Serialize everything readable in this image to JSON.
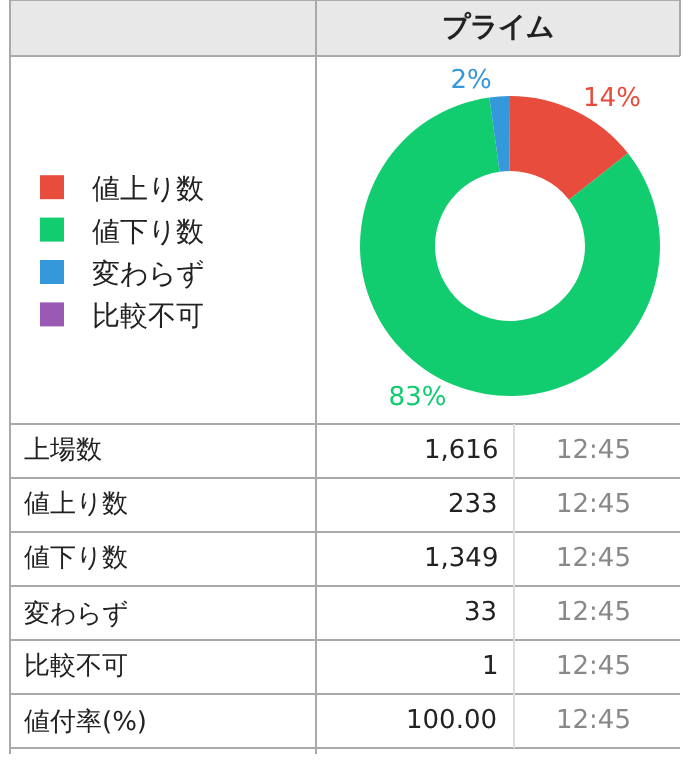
{
  "chart_data": [
    {
      "type": "donut",
      "title": "プライム",
      "categories": [
        "値上り数",
        "値下り数",
        "変わらず",
        "比較不可"
      ],
      "values": [
        14.4,
        83.4,
        2.1,
        0.1
      ],
      "colors": [
        "#e74c3c",
        "#12cc70",
        "#3498db",
        "#9b59b6"
      ],
      "value_labels": [
        "14%",
        "83%",
        "2%",
        null
      ],
      "legend": "left"
    },
    {
      "type": "other",
      "annotations": [
        "上場数",
        "1,616",
        "12:45",
        "値上り数",
        "233",
        "12:45",
        "値下り数",
        "1,349",
        "12:45",
        "変わらず",
        "33",
        "12:45",
        "比較不可",
        "1",
        "12:45",
        "値付率(%)",
        "100.00",
        "12:45"
      ]
    }
  ]
}
